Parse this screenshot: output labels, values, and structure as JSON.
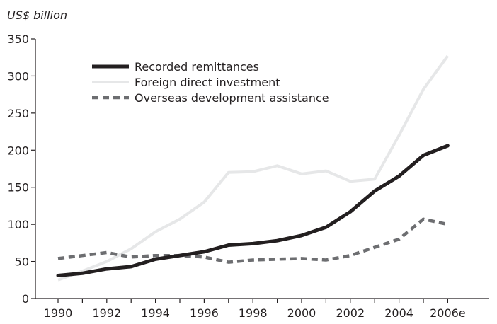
{
  "chart_data": {
    "type": "line",
    "title": "",
    "ylabel": "US$ billion",
    "xlabel": "",
    "ylim": [
      0,
      350
    ],
    "yticks": [
      0,
      50,
      100,
      150,
      200,
      250,
      300,
      350
    ],
    "x": [
      1990,
      1991,
      1992,
      1993,
      1994,
      1995,
      1996,
      1997,
      1998,
      1999,
      2000,
      2001,
      2002,
      2003,
      2004,
      2005,
      2006
    ],
    "xticks": [
      {
        "year": 1990,
        "label": "1990"
      },
      {
        "year": 1992,
        "label": "1992"
      },
      {
        "year": 1994,
        "label": "1994"
      },
      {
        "year": 1996,
        "label": "1996"
      },
      {
        "year": 1998,
        "label": "1998"
      },
      {
        "year": 2000,
        "label": "2000"
      },
      {
        "year": 2002,
        "label": "2002"
      },
      {
        "year": 2004,
        "label": "2004"
      },
      {
        "year": 2006,
        "label": "2006e"
      }
    ],
    "grid": false,
    "legend_position": "top-left",
    "series": [
      {
        "name": "Recorded remittances",
        "color": "#231f20",
        "style": "solid-thick",
        "values": [
          31,
          34,
          40,
          43,
          53,
          58,
          63,
          72,
          74,
          78,
          85,
          96,
          117,
          145,
          165,
          193,
          206
        ]
      },
      {
        "name": "Foreign direct investment",
        "color": "#e6e7e8",
        "style": "solid",
        "values": [
          25,
          37,
          50,
          67,
          90,
          107,
          130,
          170,
          171,
          179,
          168,
          172,
          158,
          161,
          220,
          282,
          327
        ]
      },
      {
        "name": "Overseas development assistance",
        "color": "#6d6e71",
        "style": "dashed",
        "values": [
          54,
          58,
          62,
          56,
          58,
          58,
          56,
          49,
          52,
          53,
          54,
          52,
          58,
          69,
          80,
          107,
          100
        ]
      }
    ]
  }
}
